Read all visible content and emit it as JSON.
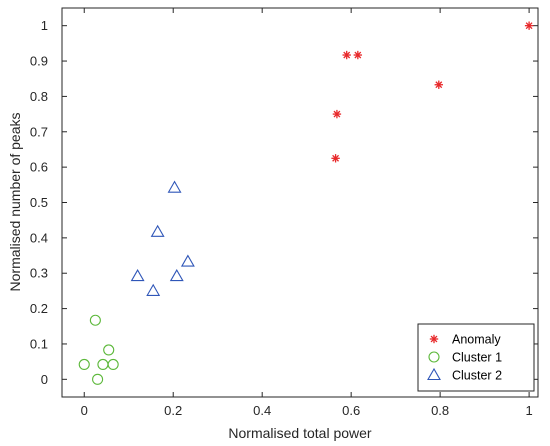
{
  "chart_data": {
    "type": "scatter",
    "title": "",
    "xlabel": "Normalised total power",
    "ylabel": "Normalised number of peaks",
    "xlim": [
      -0.05,
      1.02
    ],
    "ylim": [
      -0.05,
      1.05
    ],
    "xticks": [
      "0",
      "0.2",
      "0.4",
      "0.6",
      "0.8",
      "1"
    ],
    "yticks": [
      "0",
      "0.1",
      "0.2",
      "0.3",
      "0.4",
      "0.5",
      "0.6",
      "0.7",
      "0.8",
      "0.9",
      "1"
    ],
    "grid": false,
    "legend_position": "bottom-right",
    "series": [
      {
        "name": "Anomaly",
        "marker": "asterisk",
        "color": "#e8282a",
        "points": [
          {
            "x": 0.565,
            "y": 0.625
          },
          {
            "x": 0.568,
            "y": 0.75
          },
          {
            "x": 0.59,
            "y": 0.917
          },
          {
            "x": 0.615,
            "y": 0.917
          },
          {
            "x": 0.797,
            "y": 0.833
          },
          {
            "x": 1.0,
            "y": 1.0
          }
        ]
      },
      {
        "name": "Cluster 1",
        "marker": "circle",
        "color": "#5cb83a",
        "points": [
          {
            "x": 0.0,
            "y": 0.042
          },
          {
            "x": 0.025,
            "y": 0.167
          },
          {
            "x": 0.03,
            "y": 0.0
          },
          {
            "x": 0.042,
            "y": 0.042
          },
          {
            "x": 0.055,
            "y": 0.083
          },
          {
            "x": 0.065,
            "y": 0.042
          }
        ]
      },
      {
        "name": "Cluster 2",
        "marker": "triangle",
        "color": "#2f56b8",
        "points": [
          {
            "x": 0.12,
            "y": 0.292
          },
          {
            "x": 0.155,
            "y": 0.25
          },
          {
            "x": 0.165,
            "y": 0.417
          },
          {
            "x": 0.203,
            "y": 0.542
          },
          {
            "x": 0.208,
            "y": 0.292
          },
          {
            "x": 0.233,
            "y": 0.333
          }
        ]
      }
    ]
  }
}
